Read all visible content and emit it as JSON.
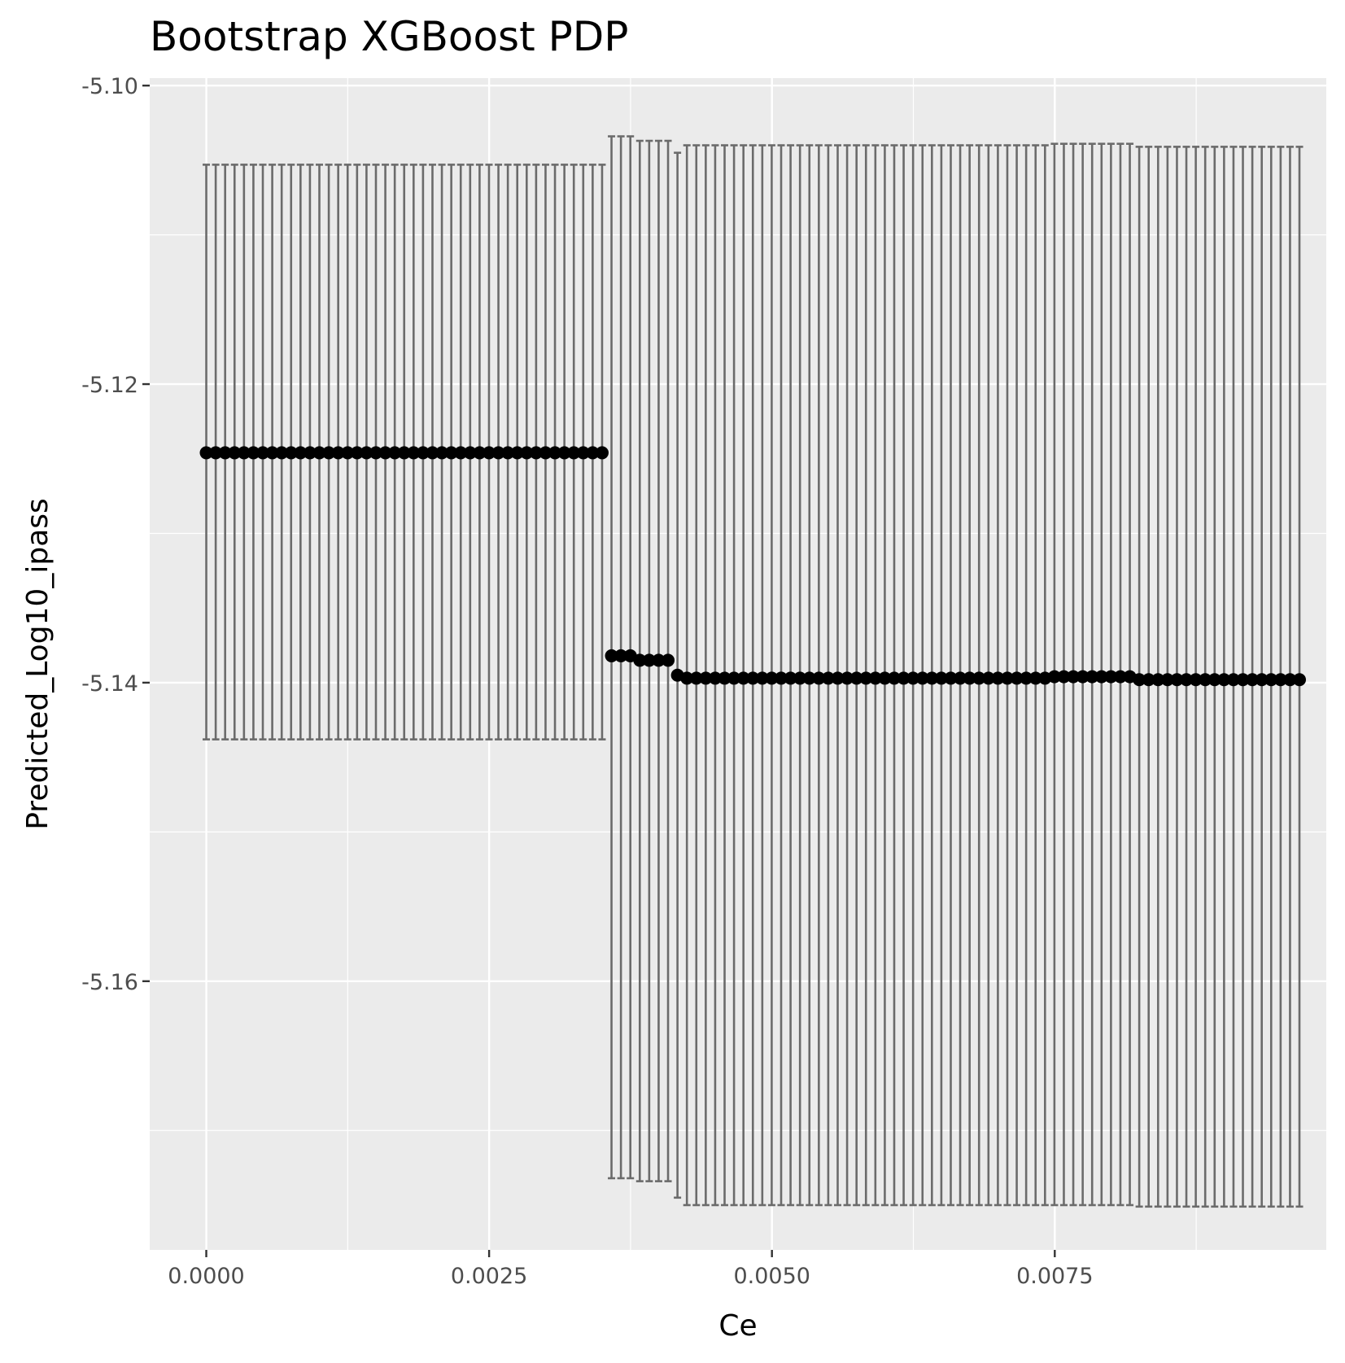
{
  "chart_data": {
    "type": "scatter",
    "title": "Bootstrap XGBoost PDP",
    "xlabel": "Ce",
    "ylabel": "Predicted_Log10_ipass",
    "xlim": [
      -0.0005,
      0.0099
    ],
    "ylim": [
      -5.178,
      -5.0995
    ],
    "x_ticks": [
      0.0,
      0.0025,
      0.005,
      0.0075
    ],
    "x_tick_labels": [
      "0.0000",
      "0.0025",
      "0.0050",
      "0.0075"
    ],
    "y_ticks": [
      -5.1,
      -5.12,
      -5.14,
      -5.16
    ],
    "y_tick_labels": [
      "-5.10",
      "-5.12",
      "-5.14",
      "-5.16"
    ],
    "grid": true,
    "x_step": 8.33e-05,
    "segments": [
      {
        "count": 43,
        "y": -5.1246,
        "lower": -5.1438,
        "upper": -5.1053
      },
      {
        "count": 3,
        "y": -5.1382,
        "lower": -5.1732,
        "upper": -5.1034
      },
      {
        "count": 4,
        "y": -5.1385,
        "lower": -5.1734,
        "upper": -5.1037
      },
      {
        "count": 1,
        "y": -5.1395,
        "lower": -5.1745,
        "upper": -5.1045
      },
      {
        "count": 39,
        "y": -5.1397,
        "lower": -5.175,
        "upper": -5.104
      },
      {
        "count": 9,
        "y": -5.1396,
        "lower": -5.175,
        "upper": -5.1039
      },
      {
        "count": 18,
        "y": -5.1398,
        "lower": -5.1751,
        "upper": -5.1041
      }
    ]
  },
  "colors": {
    "panel_bg": "#ebebeb",
    "grid": "#ffffff",
    "point": "#000000",
    "errorbar": "#6b6b6b",
    "tick": "#333333"
  }
}
